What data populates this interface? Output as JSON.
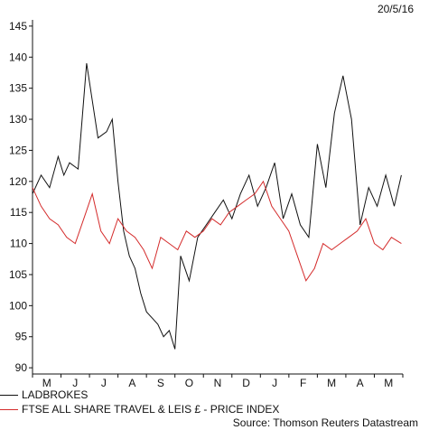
{
  "date_label": "20/5/16",
  "source": "Source: Thomson Reuters Datastream",
  "colors": {
    "ladbrokes": "#111111",
    "index": "#d42b2b"
  },
  "chart_data": {
    "type": "line",
    "title": "",
    "xlabel": "",
    "ylabel": "",
    "ylim": [
      89,
      146
    ],
    "yticks": [
      90,
      95,
      100,
      105,
      110,
      115,
      120,
      125,
      130,
      135,
      140,
      145
    ],
    "month_labels": [
      "M",
      "J",
      "J",
      "A",
      "S",
      "O",
      "N",
      "D",
      "J",
      "F",
      "M",
      "A",
      "M"
    ],
    "legend_position": "bottom-left",
    "grid": false,
    "series": [
      {
        "name": "LADBROKES",
        "color": "#111111",
        "x": [
          0.0,
          0.3,
          0.6,
          0.9,
          1.1,
          1.3,
          1.6,
          1.9,
          2.1,
          2.3,
          2.6,
          2.8,
          3.0,
          3.2,
          3.4,
          3.6,
          3.8,
          4.0,
          4.2,
          4.4,
          4.6,
          4.8,
          5.0,
          5.2,
          5.5,
          5.8,
          6.1,
          6.4,
          6.7,
          7.0,
          7.3,
          7.6,
          7.9,
          8.2,
          8.5,
          8.8,
          9.1,
          9.4,
          9.7,
          10.0,
          10.3,
          10.6,
          10.9,
          11.2,
          11.5,
          11.8,
          12.1,
          12.4,
          12.7,
          12.95
        ],
        "values": [
          118,
          121,
          119,
          124,
          121,
          123,
          122,
          139,
          133,
          127,
          128,
          130,
          120,
          112,
          108,
          106,
          102,
          99,
          98,
          97,
          95,
          96,
          93,
          108,
          104,
          111,
          113,
          115,
          117,
          114,
          118,
          121,
          116,
          119,
          123,
          114,
          118,
          113,
          111,
          126,
          119,
          131,
          137,
          130,
          113,
          119,
          116,
          121,
          116,
          121
        ]
      },
      {
        "name": "FTSE ALL SHARE TRAVEL & LEIS £ - PRICE INDEX",
        "color": "#d42b2b",
        "x": [
          0.0,
          0.3,
          0.6,
          0.9,
          1.2,
          1.5,
          1.8,
          2.1,
          2.4,
          2.7,
          3.0,
          3.3,
          3.6,
          3.9,
          4.2,
          4.5,
          4.8,
          5.1,
          5.4,
          5.7,
          6.0,
          6.3,
          6.6,
          6.9,
          7.2,
          7.5,
          7.8,
          8.1,
          8.4,
          8.7,
          9.0,
          9.3,
          9.6,
          9.9,
          10.2,
          10.5,
          10.8,
          11.1,
          11.4,
          11.7,
          12.0,
          12.3,
          12.6,
          12.95
        ],
        "values": [
          119,
          116,
          114,
          113,
          111,
          110,
          114,
          118,
          112,
          110,
          114,
          112,
          111,
          109,
          106,
          111,
          110,
          109,
          112,
          111,
          112,
          114,
          113,
          115,
          116,
          117,
          118,
          120,
          116,
          114,
          112,
          108,
          104,
          106,
          110,
          109,
          110,
          111,
          112,
          114,
          110,
          109,
          111,
          110
        ]
      }
    ]
  }
}
